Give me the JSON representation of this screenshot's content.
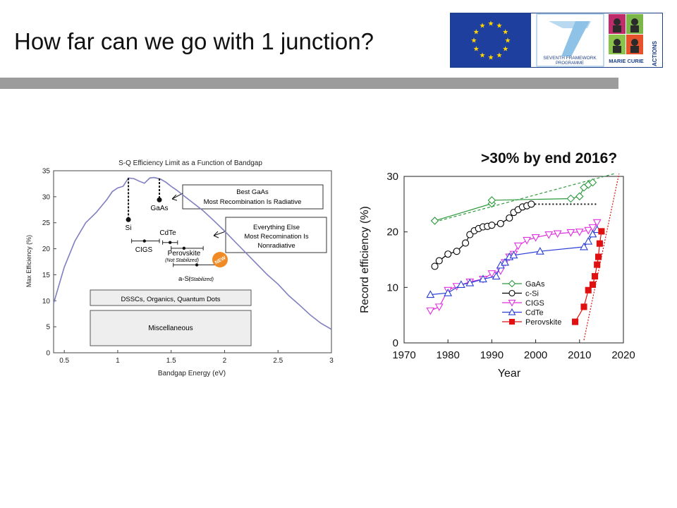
{
  "slide": {
    "title": "How far can we go with 1 junction?",
    "logos": {
      "eu_flag": "EU flag",
      "fp7_line1": "SEVENTH FRAMEWORK",
      "fp7_line2": "PROGRAMME",
      "mc_line1": "MARIE CURIE",
      "mc_line2": "ACTIONS"
    },
    "right_chart_heading": ">30% by end 2016?"
  },
  "chart_data": [
    {
      "type": "line",
      "title": "S-Q Efficiency Limit as a Function of Bandgap",
      "xlabel": "Bandgap Energy (eV)",
      "ylabel": "Max Efficiency (%)",
      "xlim": [
        0.4,
        3.0
      ],
      "ylim": [
        0,
        35
      ],
      "xticks": [
        0.5,
        1,
        1.5,
        2,
        2.5,
        3
      ],
      "xtick_labels": [
        "0.5",
        "1",
        "1.5",
        "2",
        "2.5",
        "3"
      ],
      "yticks": [
        0,
        5,
        10,
        15,
        20,
        25,
        30,
        35
      ],
      "ytick_labels": [
        "0",
        "5",
        "10",
        "15",
        "20",
        "25",
        "30",
        "35"
      ],
      "grid": false,
      "color": "#7f7fc0",
      "series": [
        {
          "x": [
            0.4,
            0.5,
            0.6,
            0.7,
            0.8,
            0.9,
            0.95,
            1.0,
            1.05,
            1.1,
            1.15,
            1.2,
            1.25,
            1.3,
            1.34,
            1.4,
            1.45,
            1.5,
            1.55,
            1.6,
            1.7,
            1.8,
            1.9,
            2.0,
            2.1,
            2.2,
            2.3,
            2.4,
            2.5,
            2.6,
            2.7,
            2.8,
            2.9,
            3.0
          ],
          "y": [
            9.5,
            16.5,
            21.5,
            25.0,
            27.0,
            29.5,
            31.0,
            31.7,
            32.0,
            33.6,
            33.5,
            33.0,
            32.6,
            33.6,
            33.7,
            33.4,
            32.8,
            32.0,
            31.3,
            30.5,
            28.9,
            27.3,
            25.4,
            23.4,
            21.3,
            19.2,
            17.1,
            15.0,
            13.2,
            11.0,
            9.2,
            7.3,
            5.7,
            4.5
          ]
        }
      ],
      "markers": [
        {
          "label": "Si",
          "x": 1.1,
          "y": 25.6
        },
        {
          "label": "GaAs",
          "x": 1.39,
          "y": 29.4
        },
        {
          "label": "CIGS",
          "x": 1.25,
          "y": 21.5
        },
        {
          "label": "CdTe",
          "x": 1.49,
          "y": 21.2
        },
        {
          "label": "Perovskite",
          "x": 1.62,
          "y": 20.1
        },
        {
          "label": "a-Si",
          "x": 1.74,
          "y": 16.9
        }
      ],
      "range_bars": [
        {
          "label": "CIGS",
          "x0": 1.13,
          "x1": 1.39,
          "y": 21.5
        },
        {
          "label": "CdTe",
          "x0": 1.42,
          "x1": 1.56,
          "y": 21.2
        },
        {
          "label": "Perovskite",
          "x0": 1.5,
          "x1": 1.8,
          "y": 20.1
        },
        {
          "label": "a-Si",
          "x0": 1.52,
          "x1": 1.97,
          "y": 16.9
        }
      ],
      "annotations": {
        "si": "Si",
        "gaas": "GaAs",
        "cigs": "CIGS",
        "cdte": "CdTe",
        "perovskite": "Perovskite",
        "not_stabilized": "(Not Stabilized)",
        "asi": "a-Si",
        "asi_note": "(Stabilized)",
        "new_badge": "NEW",
        "box_gaas_line1": "Best GaAs",
        "box_gaas_line2": "Most Recombination Is Radiative",
        "box_else_line1": "Everything Else",
        "box_else_line2": "Most Recomination Is",
        "box_else_line3": "Nonradiative",
        "box_dssc": "DSSCs, Organics, Quantum Dots",
        "box_misc": "Miscellaneous"
      }
    },
    {
      "type": "line",
      "title": "",
      "xlabel": "Year",
      "ylabel": "Record efficiency (%)",
      "xlim": [
        1970,
        2020
      ],
      "ylim": [
        0,
        30
      ],
      "xticks": [
        1970,
        1980,
        1990,
        2000,
        2010,
        2020
      ],
      "xtick_labels": [
        "1970",
        "1980",
        "1990",
        "2000",
        "2010",
        "2020"
      ],
      "yticks": [
        0,
        10,
        20,
        30
      ],
      "ytick_labels": [
        "0",
        "10",
        "20",
        "30"
      ],
      "grid": false,
      "legend_position": "bottom-center",
      "series": [
        {
          "name": "GaAs",
          "color": "#2e9a3e",
          "marker": "diamond",
          "x": [
            1977,
            1990,
            1990,
            2008,
            2010,
            2011,
            2012,
            2013
          ],
          "y": [
            22.0,
            25.1,
            25.7,
            26.0,
            26.4,
            28.0,
            28.5,
            28.9
          ]
        },
        {
          "name": "c-Si",
          "color": "#000000",
          "marker": "circle",
          "x": [
            1977,
            1978,
            1980,
            1982,
            1984,
            1985,
            1986,
            1987,
            1988,
            1989,
            1990,
            1992,
            1994,
            1995,
            1996,
            1997,
            1998,
            1999
          ],
          "y": [
            13.8,
            14.8,
            16.0,
            16.5,
            18.0,
            19.5,
            20.2,
            20.6,
            20.9,
            21.0,
            21.2,
            21.5,
            22.5,
            23.5,
            24.0,
            24.5,
            24.7,
            25.0
          ]
        },
        {
          "name": "CIGS",
          "color": "#e030e0",
          "marker": "triangle-down",
          "x": [
            1976,
            1978,
            1980,
            1982,
            1985,
            1988,
            1990,
            1992,
            1993,
            1994,
            1995,
            1996,
            1998,
            2000,
            2003,
            2005,
            2008,
            2010,
            2012,
            2013,
            2014
          ],
          "y": [
            5.8,
            6.5,
            9.5,
            10.2,
            11.0,
            11.5,
            12.5,
            13.0,
            14.5,
            15.5,
            16.0,
            17.5,
            18.5,
            19.0,
            19.5,
            19.7,
            19.9,
            20.0,
            20.3,
            20.8,
            21.7
          ]
        },
        {
          "name": "CdTe",
          "color": "#2a3ed6",
          "marker": "triangle-up",
          "x": [
            1976,
            1980,
            1983,
            1985,
            1988,
            1991,
            1992,
            1993,
            1994,
            1995,
            2001,
            2011,
            2012,
            2013,
            2014
          ],
          "y": [
            8.7,
            9.0,
            10.5,
            10.8,
            11.5,
            12.0,
            14.0,
            14.5,
            15.5,
            15.8,
            16.5,
            17.3,
            18.3,
            19.6,
            20.4
          ]
        },
        {
          "name": "Perovskite",
          "color": "#e01010",
          "marker": "square",
          "x": [
            2009,
            2011,
            2012,
            2013,
            2013.5,
            2014,
            2014.3,
            2014.6,
            2015
          ],
          "y": [
            3.8,
            6.5,
            9.5,
            10.5,
            12.0,
            14.1,
            15.5,
            17.9,
            20.1
          ]
        }
      ],
      "guides": [
        {
          "kind": "dotted-black",
          "x": [
            1999,
            2014
          ],
          "y": [
            25.0,
            25.0
          ]
        },
        {
          "kind": "dashed-green",
          "x": [
            1977,
            2018
          ],
          "y": [
            21.8,
            30.5
          ]
        },
        {
          "kind": "dotted-red",
          "x": [
            2011,
            2019
          ],
          "y": [
            0.5,
            30.5
          ]
        }
      ]
    }
  ]
}
